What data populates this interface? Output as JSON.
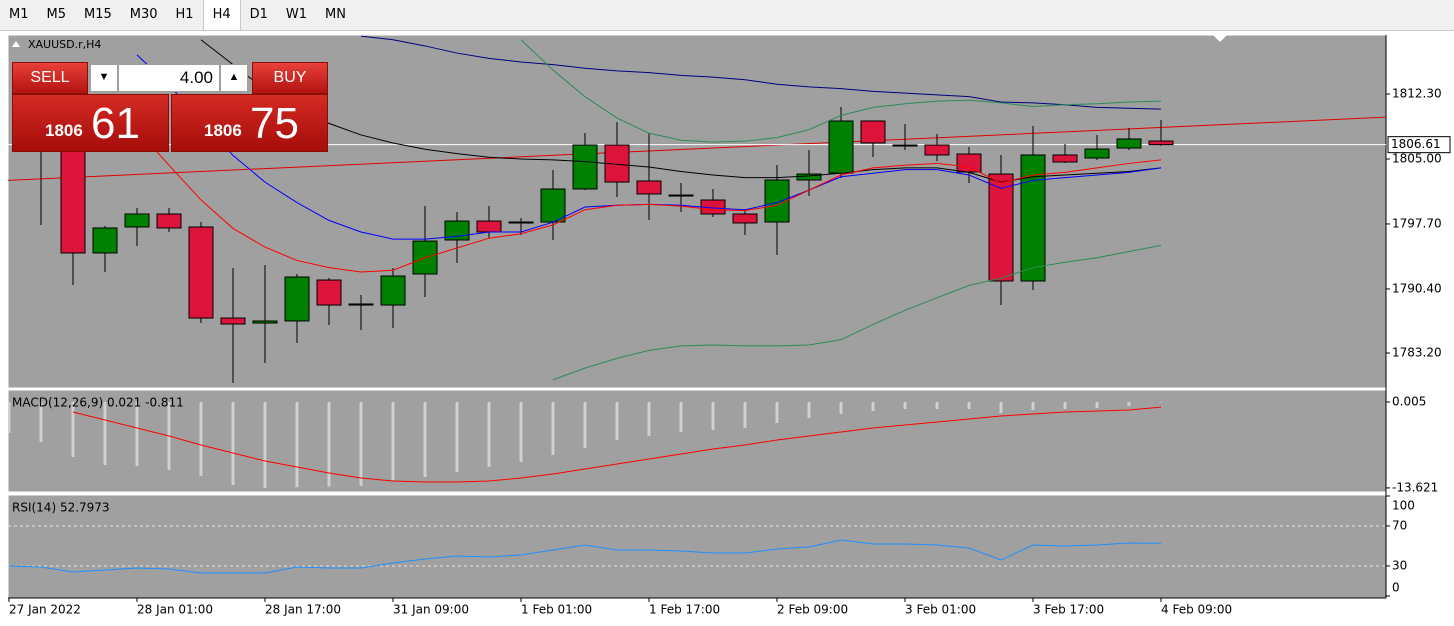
{
  "toolbar": {
    "timeframes": [
      "M1",
      "M5",
      "M15",
      "M30",
      "H1",
      "H4",
      "D1",
      "W1",
      "MN"
    ],
    "selected": "H4"
  },
  "trade_panel": {
    "sell": "SELL",
    "buy": "BUY",
    "volume": "4.00",
    "bid_big": "1806",
    "bid_small": "61",
    "ask_big": "1806",
    "ask_small": "75"
  },
  "chart_data": [
    {
      "type": "candlestick",
      "title": "XAUUSD.r,H4",
      "categories": [
        "27 Jan 2022",
        null,
        null,
        null,
        "28 Jan 01:00",
        null,
        null,
        null,
        "28 Jan 17:00",
        null,
        null,
        null,
        "31 Jan 09:00",
        null,
        null,
        null,
        "1 Feb 01:00",
        null,
        null,
        null,
        "1 Feb 17:00",
        null,
        null,
        null,
        "2 Feb 09:00",
        null,
        null,
        null,
        "3 Feb 01:00",
        null,
        null,
        null,
        "3 Feb 17:00",
        null,
        null,
        null,
        "4 Feb 09:00"
      ],
      "open": [
        null,
        1807.13,
        1806.01,
        1794.44,
        1797.36,
        1798.82,
        1797.36,
        1787.13,
        1786.57,
        1786.8,
        1791.4,
        1788.59,
        1788.59,
        1792.08,
        1795.9,
        1798.03,
        1797.81,
        1797.92,
        1801.63,
        1806.57,
        1802.53,
        1800.95,
        1800.39,
        1798.82,
        1797.92,
        1802.64,
        1803.42,
        1809.27,
        1806.57,
        1806.57,
        1805.56,
        1803.31,
        1791.29,
        1805.45,
        1805.11,
        1806.23,
        1807.02
      ],
      "high": [
        null,
        1808.26,
        1806.23,
        1797.47,
        1799.49,
        1799.49,
        1797.92,
        1792.75,
        1793.09,
        1792.08,
        1791.63,
        1789.72,
        1792.75,
        1799.72,
        1799.04,
        1799.72,
        1798.37,
        1803.76,
        1807.92,
        1809.16,
        1807.92,
        1802.3,
        1801.63,
        1799.38,
        1804.32,
        1806.01,
        1810.84,
        1809.27,
        1808.93,
        1807.81,
        1806.35,
        1805.45,
        1808.71,
        1806.68,
        1807.69,
        1808.48,
        1809.38
      ],
      "low": [
        null,
        1797.58,
        1790.84,
        1792.3,
        1795.22,
        1796.8,
        1786.57,
        1779.83,
        1782.08,
        1784.32,
        1786.35,
        1785.78,
        1786.01,
        1789.49,
        1793.31,
        1796.12,
        1796.46,
        1795.9,
        1801.51,
        1800.73,
        1798.14,
        1799.04,
        1798.48,
        1796.46,
        1794.21,
        1800.84,
        1802.86,
        1805.22,
        1806.01,
        1804.77,
        1802.3,
        1788.59,
        1790.28,
        1804.55,
        1804.89,
        1806.01,
        1806.46
      ],
      "close": [
        null,
        1806.01,
        1794.44,
        1797.25,
        1798.82,
        1797.25,
        1787.13,
        1786.46,
        1786.8,
        1791.74,
        1788.59,
        1788.71,
        1791.85,
        1795.78,
        1798.03,
        1796.8,
        1797.92,
        1801.63,
        1806.57,
        1802.41,
        1801.07,
        1800.84,
        1798.82,
        1797.81,
        1802.64,
        1803.31,
        1809.27,
        1806.8,
        1806.46,
        1805.45,
        1803.54,
        1791.29,
        1805.45,
        1804.66,
        1806.12,
        1807.25,
        1806.61
      ],
      "up_color": "#008000",
      "down_color": "#dc143c",
      "series": [
        {
          "color": "#000080",
          "values": [
            null,
            null,
            null,
            null,
            null,
            null,
            null,
            null,
            null,
            null,
            null,
            1818.8,
            1818.4,
            1817.7,
            1816.9,
            1816.3,
            1815.9,
            1815.6,
            1815.2,
            1814.9,
            1814.7,
            1814.4,
            1814.2,
            1813.9,
            1813.4,
            1813.1,
            1812.9,
            1812.6,
            1812.4,
            1812.2,
            1812.0,
            1811.4,
            1811.3,
            1811.1,
            1810.8,
            1810.7,
            1810.6
          ]
        },
        {
          "color": "#000000",
          "values": [
            null,
            null,
            null,
            null,
            null,
            null,
            1818.4,
            1815.6,
            1812.8,
            1810.7,
            1809.0,
            1807.7,
            1806.8,
            1806.1,
            1805.6,
            1805.2,
            1805.0,
            1804.9,
            1804.7,
            1804.4,
            1804.1,
            1803.6,
            1803.2,
            1802.9,
            1802.9,
            1803.1,
            1803.4,
            1803.8,
            1804.0,
            1804.0,
            1803.5,
            1802.4,
            1803.0,
            1803.2,
            1803.4,
            1803.6,
            1804.0
          ]
        },
        {
          "color": "#0000ff",
          "values": [
            null,
            null,
            null,
            null,
            1816.7,
            1813.3,
            1809.4,
            1805.4,
            1802.4,
            1800.1,
            1798.1,
            1796.8,
            1796.0,
            1796.0,
            1796.3,
            1796.8,
            1796.8,
            1797.9,
            1799.6,
            1799.8,
            1799.9,
            1799.8,
            1799.5,
            1799.3,
            1800.1,
            1801.5,
            1803.0,
            1803.4,
            1803.8,
            1803.8,
            1803.2,
            1801.7,
            1802.6,
            1802.9,
            1803.2,
            1803.5,
            1804.0
          ]
        },
        {
          "color": "#ff0000",
          "values": [
            null,
            null,
            null,
            1812.2,
            1808.3,
            1804.3,
            1800.4,
            1797.2,
            1795.1,
            1793.6,
            1792.8,
            1792.3,
            1792.5,
            1793.9,
            1795.0,
            1796.1,
            1796.6,
            1797.6,
            1799.3,
            1799.8,
            1799.9,
            1799.7,
            1799.3,
            1799.2,
            1799.8,
            1801.5,
            1803.2,
            1804.0,
            1804.3,
            1804.5,
            1804.1,
            1802.3,
            1803.2,
            1803.5,
            1804.0,
            1804.5,
            1804.9
          ]
        },
        {
          "color": "#2e8b57",
          "values": [
            null,
            null,
            null,
            null,
            null,
            null,
            null,
            null,
            null,
            null,
            null,
            null,
            null,
            null,
            null,
            null,
            1818.4,
            1815.0,
            1812.0,
            1809.6,
            1807.9,
            1807.1,
            1806.9,
            1807.0,
            1807.4,
            1808.3,
            1809.9,
            1810.8,
            1811.2,
            1811.5,
            1811.6,
            1811.3,
            1810.9,
            1811.1,
            1811.2,
            1811.4,
            1811.5
          ]
        },
        {
          "color": "#2e8b57",
          "values": [
            null,
            null,
            null,
            null,
            null,
            null,
            null,
            null,
            null,
            null,
            null,
            null,
            null,
            null,
            null,
            null,
            null,
            1780.2,
            1781.5,
            1782.6,
            1783.5,
            1784.0,
            1784.1,
            1784.0,
            1784.0,
            1784.1,
            1784.7,
            1786.4,
            1788.0,
            1789.4,
            1790.8,
            1791.6,
            1792.8,
            1793.4,
            1793.9,
            1794.6,
            1795.3
          ]
        }
      ],
      "trendline": {
        "color": "#e00000",
        "values": [
          1802.6,
          1809.7
        ]
      },
      "current_price": 1806.61,
      "ylim": [
        1779.27,
        1818.93
      ],
      "yticks": [
        {
          "value": 1783.2,
          "label": "1783.20"
        },
        {
          "value": 1790.4,
          "label": "1790.40"
        },
        {
          "value": 1797.7,
          "label": "1797.70"
        },
        {
          "value": 1805.0,
          "label": "1805.00"
        },
        {
          "value": 1812.3,
          "label": "1812.30"
        }
      ]
    },
    {
      "type": "macd",
      "title": "MACD(12,26,9) 0.021 -0.811",
      "values": [
        -4.91,
        -6.34,
        -8.72,
        -9.99,
        -10.14,
        -10.78,
        -11.73,
        -13.16,
        -13.621,
        -13.5,
        -13.4,
        -13.3,
        -12.36,
        -11.89,
        -11.1,
        -10.3,
        -9.51,
        -8.4,
        -7.29,
        -6.02,
        -5.39,
        -4.76,
        -4.44,
        -4.12,
        -3.33,
        -2.54,
        -1.9,
        -1.43,
        -1.11,
        -1.11,
        -1.11,
        -1.74,
        -1.27,
        -1.11,
        -0.95,
        -0.63,
        0.021
      ],
      "color": "#d0d0d0",
      "series": [
        {
          "color": "#ff0000",
          "values": [
            null,
            null,
            -1.59,
            -2.85,
            -4.12,
            -5.39,
            -6.82,
            -8.08,
            -9.35,
            -10.3,
            -11.25,
            -12.05,
            -12.52,
            -12.68,
            -12.68,
            -12.52,
            -12.05,
            -11.41,
            -10.62,
            -9.83,
            -9.03,
            -8.24,
            -7.45,
            -6.82,
            -6.02,
            -5.39,
            -4.76,
            -4.12,
            -3.65,
            -3.17,
            -2.69,
            -2.22,
            -1.9,
            -1.59,
            -1.43,
            -1.27,
            -0.811
          ]
        }
      ],
      "ylim": [
        -14.27,
        1.9
      ],
      "yticks": [
        0.005,
        -13.621
      ]
    },
    {
      "type": "line",
      "title": "RSI(14) 52.7973",
      "values": [
        30,
        29,
        24,
        26,
        28,
        27,
        23,
        23,
        23,
        29,
        28,
        28,
        33,
        37,
        40,
        39,
        41,
        46,
        51,
        46,
        46,
        45,
        43,
        43,
        47,
        49,
        56,
        52,
        52,
        51,
        48,
        36,
        51,
        50,
        51,
        53,
        52.7973
      ],
      "color": "#1e90ff",
      "ylim": [
        0,
        100
      ],
      "yticks": [
        0,
        30,
        70,
        100
      ],
      "levels": [
        30,
        70
      ]
    }
  ]
}
